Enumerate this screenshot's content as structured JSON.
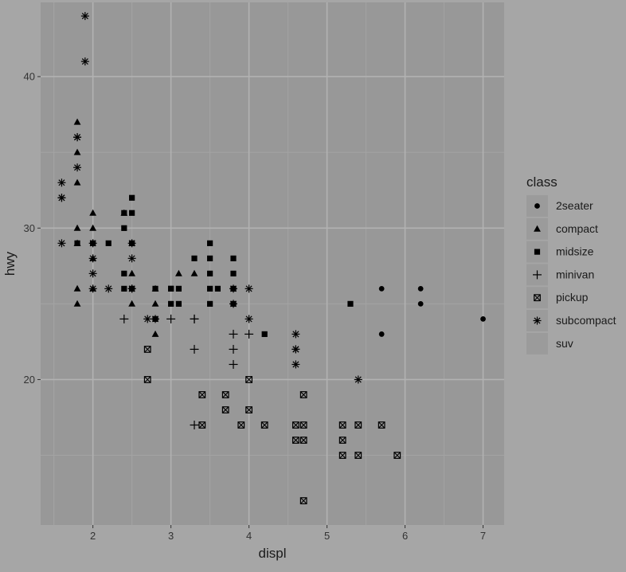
{
  "chart_data": {
    "type": "scatter",
    "xlabel": "displ",
    "ylabel": "hwy",
    "xlim": [
      1.33,
      7.27
    ],
    "ylim": [
      10.4,
      44.9
    ],
    "x_ticks": [
      2,
      3,
      4,
      5,
      6,
      7
    ],
    "y_ticks": [
      20,
      30,
      40
    ],
    "grid": true,
    "legend": {
      "title": "class",
      "position": "right"
    },
    "colors": {
      "panel": "#989898",
      "background": "#a6a6a6",
      "grid_major": "#b2b2b2",
      "grid_minor": "#a3a3a3",
      "point": "#000000",
      "text": "#1a1a1a",
      "tick_text": "#333333"
    },
    "series": [
      {
        "name": "2seater",
        "shape": "circle",
        "x": [
          5.7,
          5.7,
          6.2,
          6.2,
          7.0
        ],
        "y": [
          26,
          23,
          26,
          25,
          24
        ]
      },
      {
        "name": "compact",
        "shape": "triangle",
        "x": [
          1.8,
          1.8,
          1.8,
          1.8,
          1.8,
          1.8,
          1.8,
          1.8,
          2.0,
          2.0,
          2.0,
          2.0,
          2.4,
          2.5,
          2.5,
          2.5,
          2.8,
          2.8,
          2.8,
          3.1,
          3.3
        ],
        "y": [
          37,
          35,
          33,
          30,
          29,
          26,
          25,
          29,
          31,
          30,
          28,
          26,
          31,
          29,
          27,
          25,
          26,
          25,
          23,
          27,
          27
        ]
      },
      {
        "name": "midsize",
        "shape": "square",
        "x": [
          1.8,
          2.0,
          2.2,
          2.4,
          2.4,
          2.4,
          2.4,
          2.5,
          2.5,
          2.5,
          2.5,
          2.8,
          2.8,
          3.0,
          3.0,
          3.0,
          3.1,
          3.1,
          3.3,
          3.5,
          3.5,
          3.5,
          3.5,
          3.5,
          3.6,
          3.8,
          3.8,
          3.8,
          3.8,
          4.2,
          5.3
        ],
        "y": [
          29,
          29,
          29,
          31,
          30,
          27,
          26,
          32,
          31,
          29,
          26,
          26,
          24,
          26,
          25,
          26,
          26,
          25,
          28,
          29,
          28,
          27,
          26,
          25,
          26,
          28,
          27,
          26,
          25,
          23,
          25
        ]
      },
      {
        "name": "minivan",
        "shape": "plus",
        "x": [
          2.4,
          3.0,
          3.3,
          3.3,
          3.3,
          3.8,
          3.8,
          3.8,
          4.0,
          3.3
        ],
        "y": [
          24,
          24,
          24,
          22,
          17,
          23,
          22,
          21,
          23,
          24
        ]
      },
      {
        "name": "pickup",
        "shape": "square-cross",
        "x": [
          2.7,
          2.7,
          3.4,
          3.4,
          3.7,
          3.7,
          3.9,
          4.0,
          4.0,
          4.2,
          4.6,
          4.6,
          4.7,
          4.7,
          4.7,
          4.7,
          5.2,
          5.2,
          5.2,
          5.4,
          5.4,
          5.7,
          5.9
        ],
        "y": [
          22,
          20,
          19,
          17,
          19,
          18,
          17,
          20,
          18,
          17,
          17,
          16,
          19,
          17,
          16,
          12,
          17,
          16,
          15,
          17,
          15,
          17,
          15
        ]
      },
      {
        "name": "subcompact",
        "shape": "asterisk",
        "x": [
          1.6,
          1.6,
          1.6,
          1.6,
          1.8,
          1.8,
          1.8,
          1.9,
          1.9,
          2.0,
          2.0,
          2.0,
          2.0,
          2.2,
          2.5,
          2.5,
          2.5,
          2.5,
          2.7,
          2.8,
          3.8,
          3.8,
          4.0,
          4.0,
          4.6,
          4.6,
          4.6,
          4.6,
          5.4
        ],
        "y": [
          33,
          32,
          32,
          29,
          36,
          36,
          34,
          44,
          41,
          29,
          28,
          27,
          26,
          26,
          29,
          28,
          26,
          26,
          24,
          24,
          26,
          25,
          26,
          24,
          23,
          22,
          22,
          21,
          20
        ]
      },
      {
        "name": "suv",
        "shape": "none",
        "x": [],
        "y": []
      }
    ]
  }
}
